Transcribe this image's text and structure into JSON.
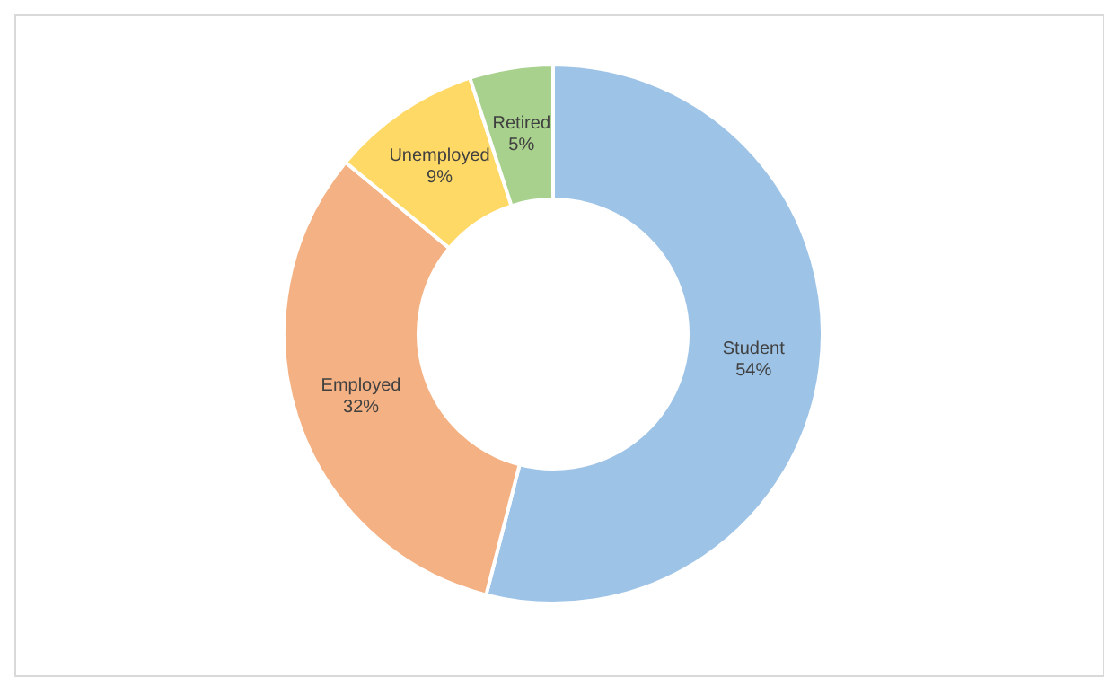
{
  "chart_data": {
    "type": "donut",
    "categories": [
      "Student",
      "Employed",
      "Unemployed",
      "Retired"
    ],
    "values": [
      54,
      32,
      9,
      5
    ],
    "colors": [
      "#9dc3e6",
      "#f4b183",
      "#ffd966",
      "#a9d18e"
    ],
    "value_labels": [
      "54%",
      "32%",
      "9%",
      "5%"
    ],
    "legend": false
  }
}
